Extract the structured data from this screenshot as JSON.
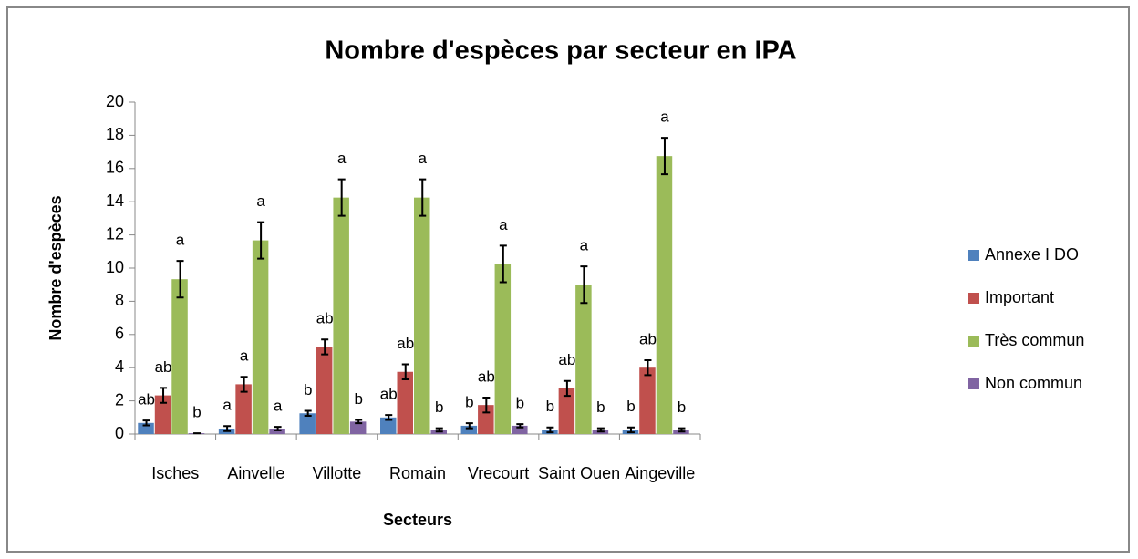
{
  "chart_data": {
    "type": "bar",
    "title": "Nombre d'espèces par secteur en IPA",
    "x_label": "Secteurs",
    "y_label": "Nombre d'espèces",
    "categories": [
      "Isches",
      "Ainvelle",
      "Villotte",
      "Romain",
      "Vrecourt",
      "Saint Ouen",
      "Aingeville"
    ],
    "series": [
      {
        "name": "Annexe I DO",
        "color": "#4f81bd",
        "values": [
          0.67,
          0.33,
          1.25,
          1.0,
          0.5,
          0.25,
          0.25
        ],
        "errors": [
          0.15,
          0.15,
          0.15,
          0.15,
          0.15,
          0.15,
          0.15
        ],
        "labels": [
          "ab",
          "a",
          "b",
          "ab",
          "b",
          "b",
          "b"
        ]
      },
      {
        "name": "Important",
        "color": "#c0504d",
        "values": [
          2.33,
          3.0,
          5.25,
          3.75,
          1.75,
          2.75,
          4.0
        ],
        "errors": [
          0.45,
          0.45,
          0.45,
          0.45,
          0.45,
          0.45,
          0.45
        ],
        "labels": [
          "ab",
          "a",
          "ab",
          "ab",
          "ab",
          "ab",
          "ab"
        ]
      },
      {
        "name": "Très commun",
        "color": "#9bbb59",
        "values": [
          9.33,
          11.67,
          14.25,
          14.25,
          10.25,
          9.0,
          16.75
        ],
        "errors": [
          1.1,
          1.1,
          1.1,
          1.1,
          1.1,
          1.1,
          1.1
        ],
        "labels": [
          "a",
          "a",
          "a",
          "a",
          "a",
          "a",
          "a"
        ]
      },
      {
        "name": "Non commun",
        "color": "#8064a2",
        "values": [
          0.05,
          0.33,
          0.75,
          0.25,
          0.5,
          0.25,
          0.25
        ],
        "errors": [
          0,
          0.1,
          0.1,
          0.1,
          0.1,
          0.1,
          0.1
        ],
        "labels": [
          "b",
          "a",
          "b",
          "b",
          "b",
          "b",
          "b"
        ]
      }
    ],
    "ylim": [
      0,
      20
    ],
    "yticks": [
      0,
      2,
      4,
      6,
      8,
      10,
      12,
      14,
      16,
      18,
      20
    ],
    "grid": false,
    "legend": "right"
  }
}
